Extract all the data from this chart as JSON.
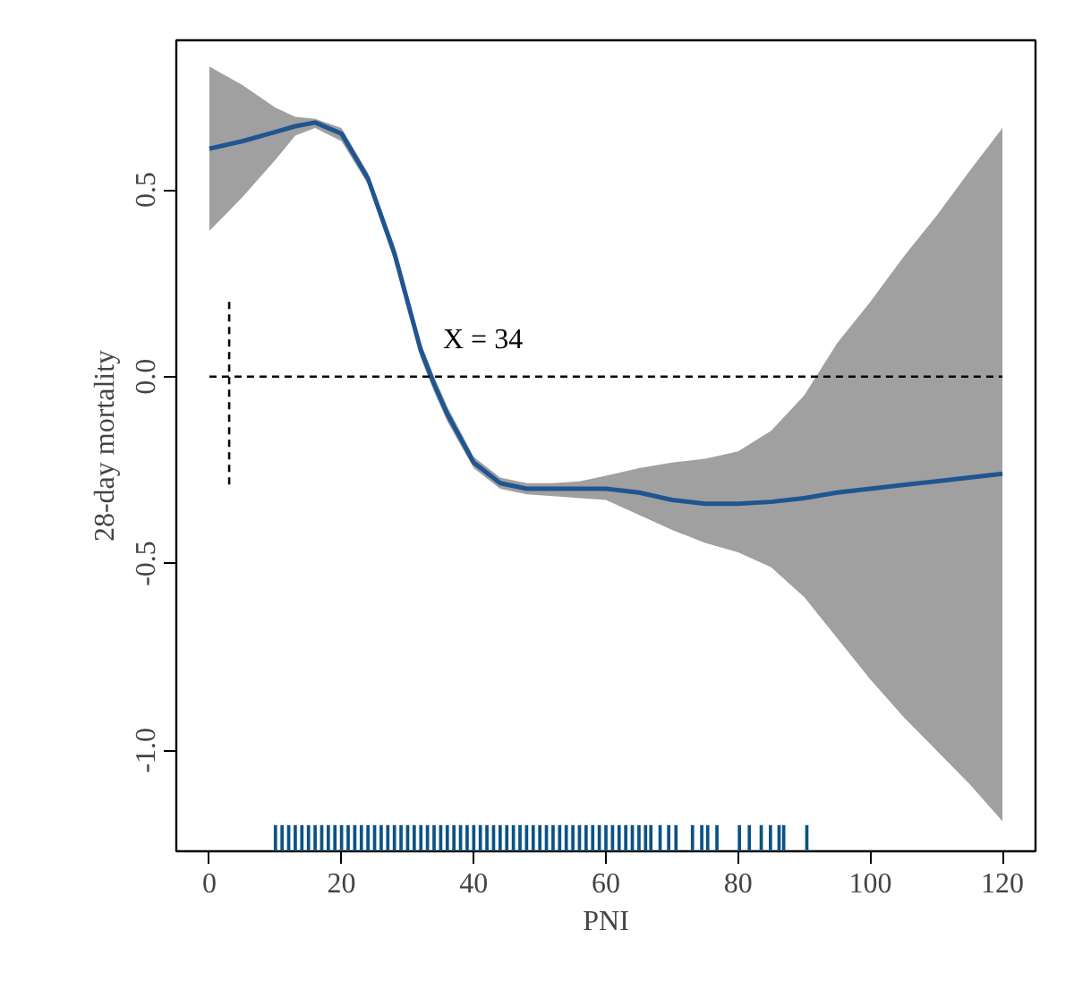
{
  "chart_data": {
    "type": "line",
    "xlabel": "PNI",
    "ylabel": "28-day mortality",
    "xlim": [
      -5,
      125
    ],
    "ylim": [
      -1.27,
      0.9
    ],
    "xticks": [
      0,
      20,
      40,
      60,
      80,
      100,
      120
    ],
    "yticks": [
      {
        "value": -1.0,
        "label": "-1.0"
      },
      {
        "value": -0.5,
        "label": "-0.5"
      },
      {
        "value": 0.0,
        "label": "0.0"
      },
      {
        "value": 0.5,
        "label": "0.5"
      }
    ],
    "grid": false,
    "marker": "none",
    "annotations": [
      {
        "text": "X = 34",
        "x": 34,
        "y": 0.0
      }
    ],
    "series": [
      {
        "color": "#1f5591",
        "line_style": "solid",
        "x": [
          0,
          5,
          10,
          13,
          16,
          20,
          24,
          28,
          32,
          34,
          36,
          40,
          44,
          48,
          52,
          56,
          60,
          65,
          70,
          75,
          80,
          85,
          90,
          95,
          100,
          105,
          110,
          115,
          120
        ],
        "values": [
          0.61,
          0.63,
          0.655,
          0.67,
          0.68,
          0.65,
          0.53,
          0.33,
          0.07,
          -0.02,
          -0.1,
          -0.23,
          -0.285,
          -0.3,
          -0.3,
          -0.3,
          -0.3,
          -0.31,
          -0.33,
          -0.34,
          -0.34,
          -0.335,
          -0.325,
          -0.31,
          -0.3,
          -0.29,
          -0.28,
          -0.27,
          -0.26
        ],
        "lower": [
          0.39,
          0.48,
          0.58,
          0.645,
          0.665,
          0.63,
          0.515,
          0.31,
          0.05,
          -0.04,
          -0.12,
          -0.245,
          -0.3,
          -0.315,
          -0.32,
          -0.325,
          -0.33,
          -0.37,
          -0.41,
          -0.445,
          -0.47,
          -0.51,
          -0.59,
          -0.7,
          -0.81,
          -0.91,
          -1.0,
          -1.09,
          -1.19
        ],
        "upper": [
          0.83,
          0.78,
          0.72,
          0.695,
          0.69,
          0.665,
          0.545,
          0.35,
          0.09,
          0.0,
          -0.08,
          -0.215,
          -0.27,
          -0.285,
          -0.285,
          -0.28,
          -0.265,
          -0.245,
          -0.23,
          -0.22,
          -0.2,
          -0.145,
          -0.05,
          0.09,
          0.2,
          0.32,
          0.43,
          0.55,
          0.665
        ]
      },
      {
        "color": "#000000",
        "line_style": "dashed",
        "x": [
          0,
          120
        ],
        "values": [
          0.0,
          0.0
        ]
      },
      {
        "color": "#000000",
        "line_style": "dashed",
        "x": [
          3,
          3
        ],
        "values": [
          0.2,
          -0.3
        ]
      },
      {
        "type": "bar",
        "color": "#0b5285",
        "x": [
          10,
          11,
          12,
          13,
          14,
          15,
          16,
          17,
          18,
          19,
          20,
          21,
          22,
          23,
          24,
          25,
          26,
          27,
          28,
          29,
          30,
          31,
          32,
          33,
          34,
          35,
          36,
          37,
          38,
          39,
          40,
          41,
          42,
          43,
          44,
          45,
          46,
          47,
          48,
          49,
          50,
          51,
          52,
          53,
          54,
          55,
          56,
          57,
          58,
          59,
          60,
          61,
          62,
          63,
          64,
          65,
          66,
          66.8,
          68.2,
          69.5,
          70.6,
          73.1,
          74.5,
          75.4,
          76.8,
          80.2,
          81.7,
          83.5,
          84.9,
          86.2,
          86.9,
          90.4
        ],
        "base": [
          -1.27,
          -1.27,
          -1.27,
          -1.27,
          -1.27,
          -1.27,
          -1.27,
          -1.27,
          -1.27,
          -1.27,
          -1.27,
          -1.27,
          -1.27,
          -1.27,
          -1.27,
          -1.27,
          -1.27,
          -1.27,
          -1.27,
          -1.27,
          -1.27,
          -1.27,
          -1.27,
          -1.27,
          -1.27,
          -1.27,
          -1.27,
          -1.27,
          -1.27,
          -1.27,
          -1.27,
          -1.27,
          -1.27,
          -1.27,
          -1.27,
          -1.27,
          -1.27,
          -1.27,
          -1.27,
          -1.27,
          -1.27,
          -1.27,
          -1.27,
          -1.27,
          -1.27,
          -1.27,
          -1.27,
          -1.27,
          -1.27,
          -1.27,
          -1.27,
          -1.27,
          -1.27,
          -1.27,
          -1.27,
          -1.27,
          -1.27,
          -1.27,
          -1.27,
          -1.27,
          -1.27,
          -1.27,
          -1.27,
          -1.27,
          -1.27,
          -1.27,
          -1.27,
          -1.27,
          -1.27,
          -1.27,
          -1.27,
          -1.27
        ],
        "values": [
          0.07,
          0.07,
          0.07,
          0.07,
          0.07,
          0.07,
          0.07,
          0.07,
          0.07,
          0.07,
          0.07,
          0.07,
          0.07,
          0.07,
          0.07,
          0.07,
          0.07,
          0.07,
          0.07,
          0.07,
          0.07,
          0.07,
          0.07,
          0.07,
          0.07,
          0.07,
          0.07,
          0.07,
          0.07,
          0.07,
          0.07,
          0.07,
          0.07,
          0.07,
          0.07,
          0.07,
          0.07,
          0.07,
          0.07,
          0.07,
          0.07,
          0.07,
          0.07,
          0.07,
          0.07,
          0.07,
          0.07,
          0.07,
          0.07,
          0.07,
          0.07,
          0.07,
          0.07,
          0.07,
          0.07,
          0.07,
          0.07,
          0.07,
          0.07,
          0.07,
          0.07,
          0.07,
          0.07,
          0.07,
          0.07,
          0.07,
          0.07,
          0.07,
          0.07,
          0.07,
          0.07,
          0.07
        ]
      }
    ]
  }
}
